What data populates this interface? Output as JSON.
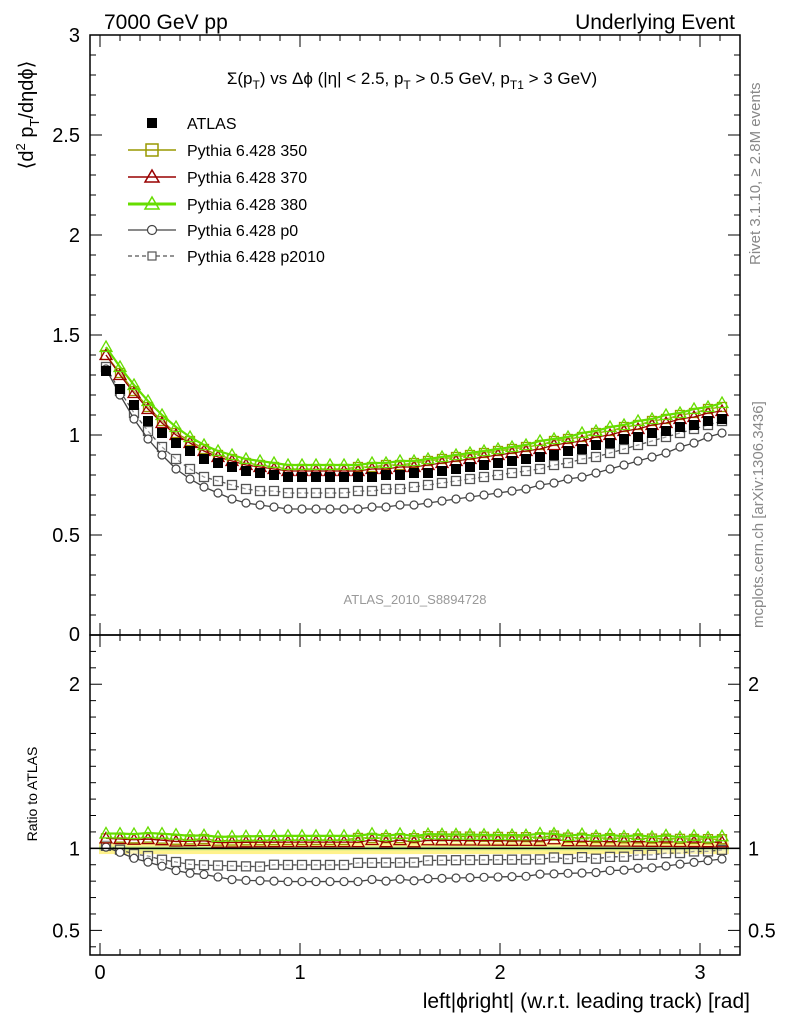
{
  "header": {
    "left": "7000 GeV pp",
    "right": "Underlying Event"
  },
  "chart_data": [
    {
      "type": "line",
      "title": "Σ(pT) vs Δφ (|η| < 2.5, pT > 0.5 GeV, pT1 > 3 GeV)",
      "ylabel": "⟨d² pT/dηdφ⟩",
      "xlim": [
        -0.05,
        3.2
      ],
      "ylim": [
        0,
        3
      ],
      "yticks": [
        "0.5",
        "1",
        "1.5",
        "2",
        "2.5",
        "3"
      ],
      "y_zero_label": "0",
      "x": [
        0.03,
        0.1,
        0.17,
        0.24,
        0.31,
        0.38,
        0.45,
        0.52,
        0.59,
        0.66,
        0.73,
        0.8,
        0.87,
        0.94,
        1.01,
        1.08,
        1.15,
        1.22,
        1.29,
        1.36,
        1.43,
        1.5,
        1.57,
        1.64,
        1.71,
        1.78,
        1.85,
        1.92,
        1.99,
        2.06,
        2.13,
        2.2,
        2.27,
        2.34,
        2.41,
        2.48,
        2.55,
        2.62,
        2.69,
        2.76,
        2.83,
        2.9,
        2.97,
        3.04,
        3.11
      ],
      "series": [
        {
          "name": "ATLAS",
          "marker": "filled-square",
          "color": "#000000",
          "values": [
            1.32,
            1.23,
            1.15,
            1.07,
            1.01,
            0.96,
            0.92,
            0.88,
            0.86,
            0.84,
            0.82,
            0.81,
            0.8,
            0.79,
            0.79,
            0.79,
            0.79,
            0.79,
            0.79,
            0.79,
            0.8,
            0.8,
            0.81,
            0.81,
            0.82,
            0.83,
            0.84,
            0.85,
            0.86,
            0.87,
            0.88,
            0.89,
            0.9,
            0.92,
            0.93,
            0.95,
            0.96,
            0.98,
            0.99,
            1.01,
            1.02,
            1.04,
            1.05,
            1.07,
            1.08
          ]
        },
        {
          "name": "Pythia 6.428 350",
          "marker": "open-square",
          "color": "#999900",
          "values": [
            1.4,
            1.31,
            1.22,
            1.14,
            1.07,
            1.01,
            0.97,
            0.93,
            0.9,
            0.88,
            0.86,
            0.85,
            0.84,
            0.83,
            0.83,
            0.83,
            0.83,
            0.83,
            0.84,
            0.84,
            0.85,
            0.85,
            0.86,
            0.87,
            0.88,
            0.89,
            0.9,
            0.91,
            0.92,
            0.93,
            0.94,
            0.95,
            0.97,
            0.98,
            0.99,
            1.01,
            1.02,
            1.04,
            1.05,
            1.07,
            1.08,
            1.1,
            1.11,
            1.13,
            1.14
          ]
        },
        {
          "name": "Pythia 6.428 370",
          "marker": "open-triangle",
          "color": "#990000",
          "values": [
            1.4,
            1.3,
            1.21,
            1.13,
            1.06,
            1.0,
            0.96,
            0.92,
            0.89,
            0.87,
            0.85,
            0.84,
            0.83,
            0.82,
            0.82,
            0.82,
            0.82,
            0.82,
            0.82,
            0.83,
            0.83,
            0.84,
            0.84,
            0.85,
            0.86,
            0.87,
            0.88,
            0.89,
            0.9,
            0.91,
            0.92,
            0.93,
            0.95,
            0.96,
            0.97,
            0.99,
            1.0,
            1.02,
            1.03,
            1.05,
            1.06,
            1.08,
            1.09,
            1.11,
            1.12
          ]
        },
        {
          "name": "Pythia 6.428 380",
          "marker": "open-triangle",
          "color": "#66dd00",
          "values": [
            1.44,
            1.34,
            1.25,
            1.17,
            1.1,
            1.04,
            0.99,
            0.95,
            0.92,
            0.9,
            0.88,
            0.87,
            0.86,
            0.85,
            0.85,
            0.85,
            0.85,
            0.85,
            0.85,
            0.86,
            0.86,
            0.87,
            0.87,
            0.88,
            0.89,
            0.9,
            0.91,
            0.92,
            0.93,
            0.94,
            0.95,
            0.97,
            0.98,
            0.99,
            1.01,
            1.02,
            1.04,
            1.05,
            1.07,
            1.08,
            1.1,
            1.11,
            1.13,
            1.14,
            1.16
          ]
        },
        {
          "name": "Pythia 6.428 p0",
          "marker": "open-circle",
          "color": "#444444",
          "dashed": false,
          "values": [
            1.33,
            1.2,
            1.08,
            0.98,
            0.9,
            0.83,
            0.78,
            0.74,
            0.71,
            0.68,
            0.66,
            0.65,
            0.64,
            0.63,
            0.63,
            0.63,
            0.63,
            0.63,
            0.63,
            0.64,
            0.64,
            0.65,
            0.65,
            0.66,
            0.67,
            0.68,
            0.69,
            0.7,
            0.71,
            0.72,
            0.73,
            0.75,
            0.76,
            0.78,
            0.79,
            0.81,
            0.83,
            0.85,
            0.87,
            0.89,
            0.91,
            0.94,
            0.96,
            0.99,
            1.01
          ]
        },
        {
          "name": "Pythia 6.428 p2010",
          "marker": "open-square",
          "color": "#555555",
          "dashed": true,
          "values": [
            1.34,
            1.22,
            1.11,
            1.02,
            0.94,
            0.88,
            0.83,
            0.79,
            0.77,
            0.75,
            0.73,
            0.72,
            0.72,
            0.71,
            0.71,
            0.71,
            0.71,
            0.71,
            0.72,
            0.72,
            0.73,
            0.73,
            0.74,
            0.75,
            0.76,
            0.77,
            0.78,
            0.79,
            0.8,
            0.81,
            0.82,
            0.83,
            0.85,
            0.86,
            0.88,
            0.89,
            0.91,
            0.93,
            0.95,
            0.97,
            0.99,
            1.01,
            1.03,
            1.05,
            1.07
          ]
        }
      ],
      "legend_placement": "top-left",
      "annotation": "ATLAS_2010_S8894728"
    },
    {
      "type": "line",
      "ylabel": "Ratio to ATLAS",
      "xlabel": "left|ϕright| (w.r.t. leading track) [rad]",
      "xlim": [
        -0.05,
        3.2
      ],
      "ylim": [
        0.35,
        2.3
      ],
      "yticks": [
        "0.5",
        "1",
        "2"
      ],
      "xticks": [
        "0",
        "1",
        "2",
        "3"
      ],
      "band_color": "#ffee66",
      "band_inner_color": "#aaee88"
    }
  ],
  "side_labels": {
    "rivet": "Rivet 3.1.10, ≥ 2.8M events",
    "mcplots": "mcplots.cern.ch [arXiv:1306.3436]"
  },
  "legend": {
    "atlas": "ATLAS",
    "s350": "Pythia 6.428 350",
    "s370": "Pythia 6.428 370",
    "s380": "Pythia 6.428 380",
    "sp0": "Pythia 6.428 p0",
    "sp2010": "Pythia 6.428 p2010"
  }
}
